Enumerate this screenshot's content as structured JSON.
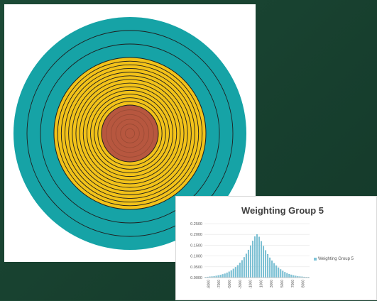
{
  "colors": {
    "teal": "#16a3a6",
    "gold": "#f2c219",
    "red": "#b7573f",
    "line": "#1f1f1f",
    "bar": "#7fc4d8"
  },
  "target": {
    "rings_teal": 3,
    "rings_gold": 13,
    "rings_red": 6
  },
  "chart_data": {
    "type": "bar",
    "title": "Weighting Group 5",
    "series": [
      {
        "name": "Weighting Group 5",
        "values": [
          0.002,
          0.003,
          0.004,
          0.005,
          0.006,
          0.008,
          0.01,
          0.012,
          0.015,
          0.018,
          0.022,
          0.027,
          0.033,
          0.04,
          0.048,
          0.057,
          0.068,
          0.08,
          0.094,
          0.11,
          0.128,
          0.148,
          0.17,
          0.19,
          0.2,
          0.188,
          0.168,
          0.146,
          0.126,
          0.108,
          0.092,
          0.078,
          0.066,
          0.055,
          0.046,
          0.038,
          0.031,
          0.025,
          0.02,
          0.016,
          0.013,
          0.01,
          0.008,
          0.006,
          0.005,
          0.004,
          0.003,
          0.002,
          0.002
        ]
      }
    ],
    "ylim": [
      0,
      0.25
    ],
    "yticks": [
      "0.0000",
      "0.0500",
      "0.1000",
      "0.1500",
      "0.2000",
      "0.2500"
    ],
    "xticks": [
      "-8000",
      "-7000",
      "-5000",
      "-3000",
      "-1000",
      "1000",
      "3000",
      "5000",
      "7000",
      "8000"
    ],
    "legend_position": "right"
  }
}
